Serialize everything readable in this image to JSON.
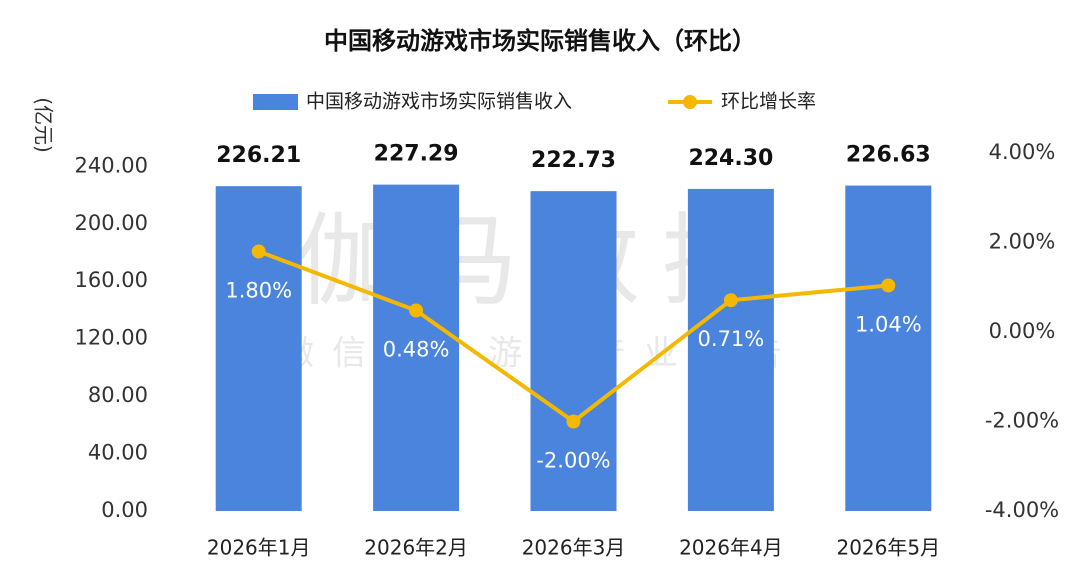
{
  "chart_data": {
    "type": "bar",
    "title": "中国移动游戏市场实际销售收入（环比）",
    "y_label": "(亿元)",
    "watermark": {
      "main": "伽马数据",
      "sub": "微信号：游戏产业报告"
    },
    "categories": [
      "2026年1月",
      "2026年2月",
      "2026年3月",
      "2026年4月",
      "2026年5月"
    ],
    "series": [
      {
        "name": "中国移动游戏市场实际销售收入",
        "type": "bar",
        "color": "#4a84dc",
        "values": [
          226.21,
          227.29,
          222.73,
          224.3,
          226.63
        ],
        "value_labels": [
          "226.21",
          "227.29",
          "222.73",
          "224.30",
          "226.63"
        ]
      },
      {
        "name": "环比增长率",
        "type": "line",
        "axis": "y2",
        "color": "#f5b800",
        "values": [
          1.8,
          0.48,
          -2.0,
          0.71,
          1.04
        ],
        "value_labels": [
          "1.80%",
          "0.48%",
          "-2.00%",
          "0.71%",
          "1.04%"
        ]
      }
    ],
    "ylim": [
      0,
      250
    ],
    "yticks": [
      {
        "value": 0,
        "label": "0.00"
      },
      {
        "value": 40,
        "label": "40.00"
      },
      {
        "value": 80,
        "label": "80.00"
      },
      {
        "value": 120,
        "label": "120.00"
      },
      {
        "value": 160,
        "label": "160.00"
      },
      {
        "value": 200,
        "label": "200.00"
      },
      {
        "value": 240,
        "label": "240.00"
      }
    ],
    "y2lim": [
      -4,
      4
    ],
    "y2ticks": [
      {
        "value": -4,
        "label": "-4.00%"
      },
      {
        "value": -2,
        "label": "-2.00%"
      },
      {
        "value": 0,
        "label": "0.00%"
      },
      {
        "value": 2,
        "label": "2.00%"
      },
      {
        "value": 4,
        "label": "4.00%"
      }
    ],
    "grid": false,
    "legend": "top"
  }
}
